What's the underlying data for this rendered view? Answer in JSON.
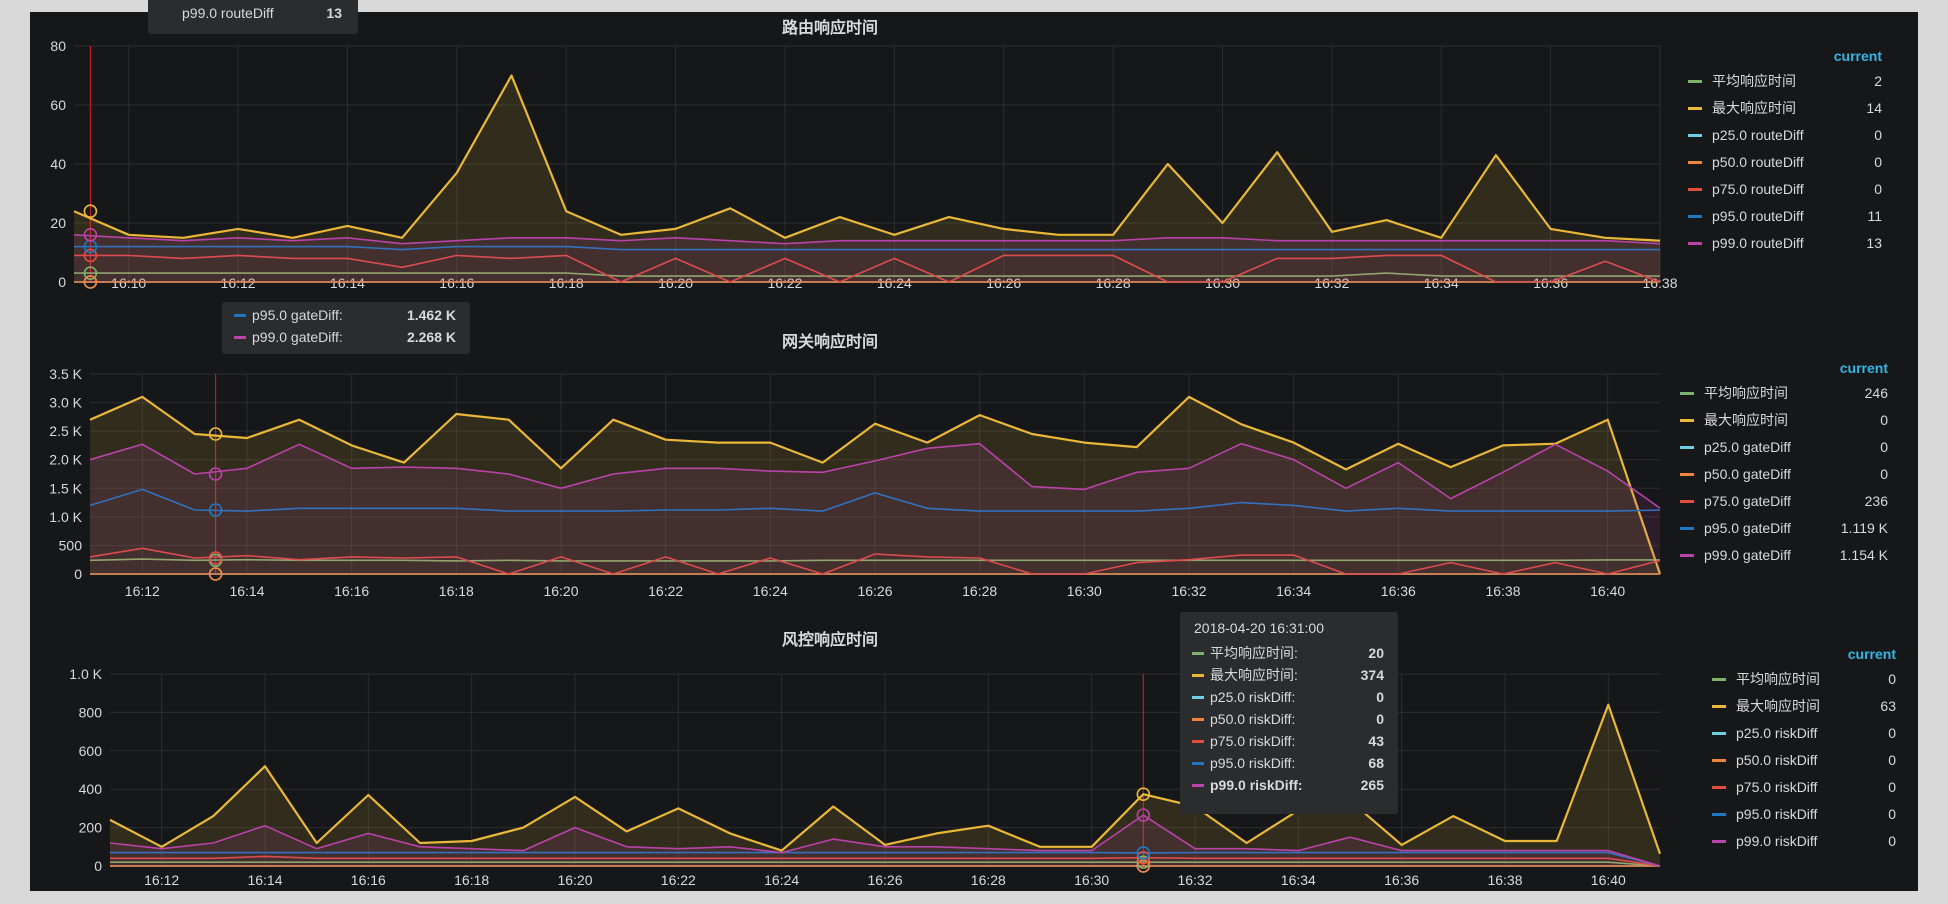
{
  "colors": {
    "avg": "#7eb26d",
    "max": "#eab839",
    "p25": "#6ed0e0",
    "p50": "#ef843c",
    "p75": "#e24d42",
    "p95": "#1f78c1",
    "p99": "#ba43a9",
    "accent": "#33b5e5",
    "cursor": "#c4162a"
  },
  "legend_header": "current",
  "chart_data": [
    {
      "type": "line",
      "title": "路由响应时间",
      "x": [
        "16:09",
        "16:10",
        "16:11",
        "16:12",
        "16:13",
        "16:14",
        "16:15",
        "16:16",
        "16:17",
        "16:18",
        "16:19",
        "16:20",
        "16:21",
        "16:22",
        "16:23",
        "16:24",
        "16:25",
        "16:26",
        "16:27",
        "16:28",
        "16:29",
        "16:30",
        "16:31",
        "16:32",
        "16:33",
        "16:34",
        "16:35",
        "16:36",
        "16:37",
        "16:38"
      ],
      "xticks": [
        "16:10",
        "16:12",
        "16:14",
        "16:16",
        "16:18",
        "16:20",
        "16:22",
        "16:24",
        "16:26",
        "16:28",
        "16:30",
        "16:32",
        "16:34",
        "16:36",
        "16:38"
      ],
      "yticks": [
        0,
        20,
        40,
        60,
        80
      ],
      "ytick_labels": [
        "0",
        "20",
        "40",
        "60",
        "80"
      ],
      "ylim": [
        0,
        80
      ],
      "area": [
        "max",
        "p99"
      ],
      "cursor": "16:09.3",
      "series": [
        {
          "name": "平均响应时间",
          "key": "avg",
          "current": "2",
          "values": [
            3,
            3,
            3,
            3,
            3,
            3,
            3,
            3,
            3,
            3,
            2,
            2,
            2,
            2,
            2,
            2,
            2,
            2,
            2,
            2,
            2,
            2,
            2,
            2,
            3,
            2,
            2,
            2,
            2,
            2
          ]
        },
        {
          "name": "最大响应时间",
          "key": "max",
          "current": "14",
          "values": [
            24,
            16,
            15,
            18,
            15,
            19,
            15,
            37,
            70,
            24,
            16,
            18,
            25,
            15,
            22,
            16,
            22,
            18,
            16,
            16,
            40,
            20,
            44,
            17,
            21,
            15,
            43,
            18,
            15,
            14
          ]
        },
        {
          "name": "p25.0 routeDiff",
          "key": "p25",
          "current": "0",
          "values": [
            0,
            0,
            0,
            0,
            0,
            0,
            0,
            0,
            0,
            0,
            0,
            0,
            0,
            0,
            0,
            0,
            0,
            0,
            0,
            0,
            0,
            0,
            0,
            0,
            0,
            0,
            0,
            0,
            0,
            0
          ]
        },
        {
          "name": "p50.0 routeDiff",
          "key": "p50",
          "current": "0",
          "values": [
            0,
            0,
            0,
            0,
            0,
            0,
            0,
            0,
            0,
            0,
            0,
            0,
            0,
            0,
            0,
            0,
            0,
            0,
            0,
            0,
            0,
            0,
            0,
            0,
            0,
            0,
            0,
            0,
            0,
            0
          ]
        },
        {
          "name": "p75.0 routeDiff",
          "key": "p75",
          "current": "0",
          "values": [
            9,
            9,
            8,
            9,
            8,
            8,
            5,
            9,
            8,
            9,
            0,
            8,
            0,
            8,
            0,
            8,
            0,
            9,
            9,
            9,
            0,
            0,
            8,
            8,
            9,
            9,
            0,
            0,
            7,
            0
          ]
        },
        {
          "name": "p95.0 routeDiff",
          "key": "p95",
          "current": "11",
          "values": [
            12,
            12,
            12,
            12,
            12,
            12,
            11,
            12,
            12,
            12,
            11,
            11,
            11,
            11,
            11,
            11,
            11,
            11,
            11,
            11,
            11,
            11,
            11,
            11,
            11,
            11,
            11,
            11,
            11,
            11
          ]
        },
        {
          "name": "p99.0 routeDiff",
          "key": "p99",
          "current": "13",
          "values": [
            16,
            15,
            14,
            15,
            14,
            15,
            13,
            14,
            15,
            15,
            14,
            15,
            14,
            13,
            14,
            14,
            14,
            14,
            14,
            14,
            15,
            15,
            14,
            14,
            14,
            14,
            14,
            14,
            14,
            13
          ]
        }
      ]
    },
    {
      "type": "line",
      "title": "网关响应时间",
      "x": [
        "16:11",
        "16:12",
        "16:13",
        "16:14",
        "16:15",
        "16:16",
        "16:17",
        "16:18",
        "16:19",
        "16:20",
        "16:21",
        "16:22",
        "16:23",
        "16:24",
        "16:25",
        "16:26",
        "16:27",
        "16:28",
        "16:29",
        "16:30",
        "16:31",
        "16:32",
        "16:33",
        "16:34",
        "16:35",
        "16:36",
        "16:37",
        "16:38",
        "16:39",
        "16:40",
        "16:41"
      ],
      "xticks": [
        "16:12",
        "16:14",
        "16:16",
        "16:18",
        "16:20",
        "16:22",
        "16:24",
        "16:26",
        "16:28",
        "16:30",
        "16:32",
        "16:34",
        "16:36",
        "16:38",
        "16:40"
      ],
      "yticks": [
        0,
        500,
        1000,
        1500,
        2000,
        2500,
        3000,
        3500
      ],
      "ytick_labels": [
        "0",
        "500",
        "1.0 K",
        "1.5 K",
        "2.0 K",
        "2.5 K",
        "3.0 K",
        "3.5 K"
      ],
      "ylim": [
        0,
        3500
      ],
      "area": [
        "max",
        "p99"
      ],
      "cursor": "16:13.4",
      "series": [
        {
          "name": "平均响应时间",
          "key": "avg",
          "current": "246",
          "values": [
            240,
            260,
            240,
            250,
            240,
            240,
            240,
            230,
            240,
            230,
            230,
            230,
            230,
            230,
            240,
            240,
            240,
            240,
            240,
            240,
            240,
            240,
            240,
            240,
            240,
            240,
            240,
            240,
            240,
            246,
            246
          ]
        },
        {
          "name": "最大响应时间",
          "key": "max",
          "current": "0",
          "values": [
            2700,
            3100,
            2450,
            2380,
            2700,
            2250,
            1950,
            2800,
            2700,
            1850,
            2700,
            2350,
            2300,
            2300,
            1950,
            2630,
            2300,
            2780,
            2450,
            2300,
            2220,
            3100,
            2620,
            2300,
            1830,
            2280,
            1870,
            2250,
            2280,
            2700,
            0
          ]
        },
        {
          "name": "p25.0 gateDiff",
          "key": "p25",
          "current": "0",
          "values": [
            0,
            0,
            0,
            0,
            0,
            0,
            0,
            0,
            0,
            0,
            0,
            0,
            0,
            0,
            0,
            0,
            0,
            0,
            0,
            0,
            0,
            0,
            0,
            0,
            0,
            0,
            0,
            0,
            0,
            0,
            0
          ]
        },
        {
          "name": "p50.0 gateDiff",
          "key": "p50",
          "current": "0",
          "values": [
            0,
            0,
            0,
            0,
            0,
            0,
            0,
            0,
            0,
            0,
            0,
            0,
            0,
            0,
            0,
            0,
            0,
            0,
            0,
            0,
            0,
            0,
            0,
            0,
            0,
            0,
            0,
            0,
            0,
            0,
            0
          ]
        },
        {
          "name": "p75.0 gateDiff",
          "key": "p75",
          "current": "236",
          "values": [
            300,
            450,
            280,
            320,
            250,
            300,
            280,
            300,
            0,
            300,
            0,
            300,
            0,
            280,
            0,
            350,
            300,
            280,
            0,
            0,
            200,
            250,
            330,
            330,
            0,
            0,
            200,
            0,
            200,
            0,
            236
          ]
        },
        {
          "name": "p95.0 gateDiff",
          "key": "p95",
          "current": "1.119 K",
          "values": [
            1200,
            1480,
            1120,
            1100,
            1150,
            1150,
            1150,
            1150,
            1100,
            1100,
            1100,
            1120,
            1120,
            1150,
            1100,
            1420,
            1150,
            1100,
            1100,
            1100,
            1100,
            1150,
            1250,
            1200,
            1100,
            1150,
            1100,
            1100,
            1100,
            1100,
            1119
          ]
        },
        {
          "name": "p99.0 gateDiff",
          "key": "p99",
          "current": "1.154 K",
          "values": [
            2000,
            2270,
            1750,
            1850,
            2270,
            1850,
            1870,
            1850,
            1750,
            1500,
            1750,
            1850,
            1850,
            1800,
            1780,
            1980,
            2200,
            2280,
            1530,
            1480,
            1780,
            1850,
            2280,
            2000,
            1500,
            1950,
            1320,
            1780,
            2270,
            1800,
            1154
          ]
        }
      ]
    },
    {
      "type": "line",
      "title": "风控响应时间",
      "x": [
        "16:11",
        "16:12",
        "16:13",
        "16:14",
        "16:15",
        "16:16",
        "16:17",
        "16:18",
        "16:19",
        "16:20",
        "16:21",
        "16:22",
        "16:23",
        "16:24",
        "16:25",
        "16:26",
        "16:27",
        "16:28",
        "16:29",
        "16:30",
        "16:31",
        "16:32",
        "16:33",
        "16:34",
        "16:35",
        "16:36",
        "16:37",
        "16:38",
        "16:39",
        "16:40",
        "16:41"
      ],
      "xticks": [
        "16:12",
        "16:14",
        "16:16",
        "16:18",
        "16:20",
        "16:22",
        "16:24",
        "16:26",
        "16:28",
        "16:30",
        "16:32",
        "16:34",
        "16:36",
        "16:38",
        "16:40"
      ],
      "yticks": [
        0,
        200,
        400,
        600,
        800,
        1000
      ],
      "ytick_labels": [
        "0",
        "200",
        "400",
        "600",
        "800",
        "1.0 K"
      ],
      "ylim": [
        0,
        1000
      ],
      "area": [
        "max",
        "p99"
      ],
      "cursor": "16:31",
      "series": [
        {
          "name": "平均响应时间",
          "key": "avg",
          "current": "0",
          "values": [
            20,
            20,
            20,
            20,
            20,
            20,
            20,
            20,
            20,
            20,
            20,
            20,
            20,
            20,
            20,
            20,
            20,
            20,
            20,
            20,
            20,
            20,
            20,
            20,
            20,
            20,
            20,
            20,
            20,
            20,
            0
          ]
        },
        {
          "name": "最大响应时间",
          "key": "max",
          "current": "63",
          "values": [
            240,
            100,
            260,
            520,
            120,
            370,
            120,
            130,
            200,
            360,
            180,
            300,
            170,
            80,
            310,
            110,
            170,
            210,
            100,
            100,
            374,
            310,
            120,
            290,
            340,
            110,
            260,
            130,
            130,
            840,
            63
          ]
        },
        {
          "name": "p25.0 riskDiff",
          "key": "p25",
          "current": "0",
          "values": [
            0,
            0,
            0,
            0,
            0,
            0,
            0,
            0,
            0,
            0,
            0,
            0,
            0,
            0,
            0,
            0,
            0,
            0,
            0,
            0,
            0,
            0,
            0,
            0,
            0,
            0,
            0,
            0,
            0,
            0,
            0
          ]
        },
        {
          "name": "p50.0 riskDiff",
          "key": "p50",
          "current": "0",
          "values": [
            0,
            0,
            0,
            0,
            0,
            0,
            0,
            0,
            0,
            0,
            0,
            0,
            0,
            0,
            0,
            0,
            0,
            0,
            0,
            0,
            0,
            0,
            0,
            0,
            0,
            0,
            0,
            0,
            0,
            0,
            0
          ]
        },
        {
          "name": "p75.0 riskDiff",
          "key": "p75",
          "current": "0",
          "values": [
            40,
            40,
            40,
            50,
            40,
            40,
            40,
            40,
            40,
            40,
            40,
            40,
            40,
            40,
            40,
            40,
            40,
            40,
            40,
            40,
            43,
            40,
            40,
            40,
            40,
            40,
            40,
            40,
            40,
            40,
            0
          ]
        },
        {
          "name": "p95.0 riskDiff",
          "key": "p95",
          "current": "0",
          "values": [
            70,
            70,
            70,
            70,
            70,
            70,
            70,
            70,
            70,
            70,
            70,
            70,
            70,
            70,
            70,
            70,
            70,
            70,
            70,
            70,
            68,
            70,
            70,
            70,
            70,
            70,
            70,
            70,
            70,
            70,
            0
          ]
        },
        {
          "name": "p99.0 riskDiff",
          "key": "p99",
          "current": "0",
          "values": [
            120,
            90,
            120,
            210,
            90,
            170,
            100,
            90,
            80,
            200,
            100,
            90,
            100,
            70,
            140,
            100,
            100,
            90,
            80,
            80,
            265,
            90,
            90,
            80,
            150,
            80,
            80,
            80,
            80,
            80,
            0
          ]
        }
      ]
    }
  ],
  "tooltips": {
    "route_partial": {
      "label": "p99.0 routeDiff",
      "value": "13"
    },
    "gate": {
      "rows": [
        {
          "key": "p95",
          "label": "p95.0 gateDiff:",
          "value": "1.462 K"
        },
        {
          "key": "p99",
          "label": "p99.0 gateDiff:",
          "value": "2.268 K"
        }
      ]
    },
    "risk": {
      "time": "2018-04-20 16:31:00",
      "rows": [
        {
          "key": "avg",
          "label": "平均响应时间:",
          "value": "20"
        },
        {
          "key": "max",
          "label": "最大响应时间:",
          "value": "374"
        },
        {
          "key": "p25",
          "label": "p25.0 riskDiff:",
          "value": "0"
        },
        {
          "key": "p50",
          "label": "p50.0 riskDiff:",
          "value": "0"
        },
        {
          "key": "p75",
          "label": "p75.0 riskDiff:",
          "value": "43"
        },
        {
          "key": "p95",
          "label": "p95.0 riskDiff:",
          "value": "68"
        },
        {
          "key": "p99",
          "label": "p99.0 riskDiff:",
          "value": "265"
        }
      ]
    }
  }
}
